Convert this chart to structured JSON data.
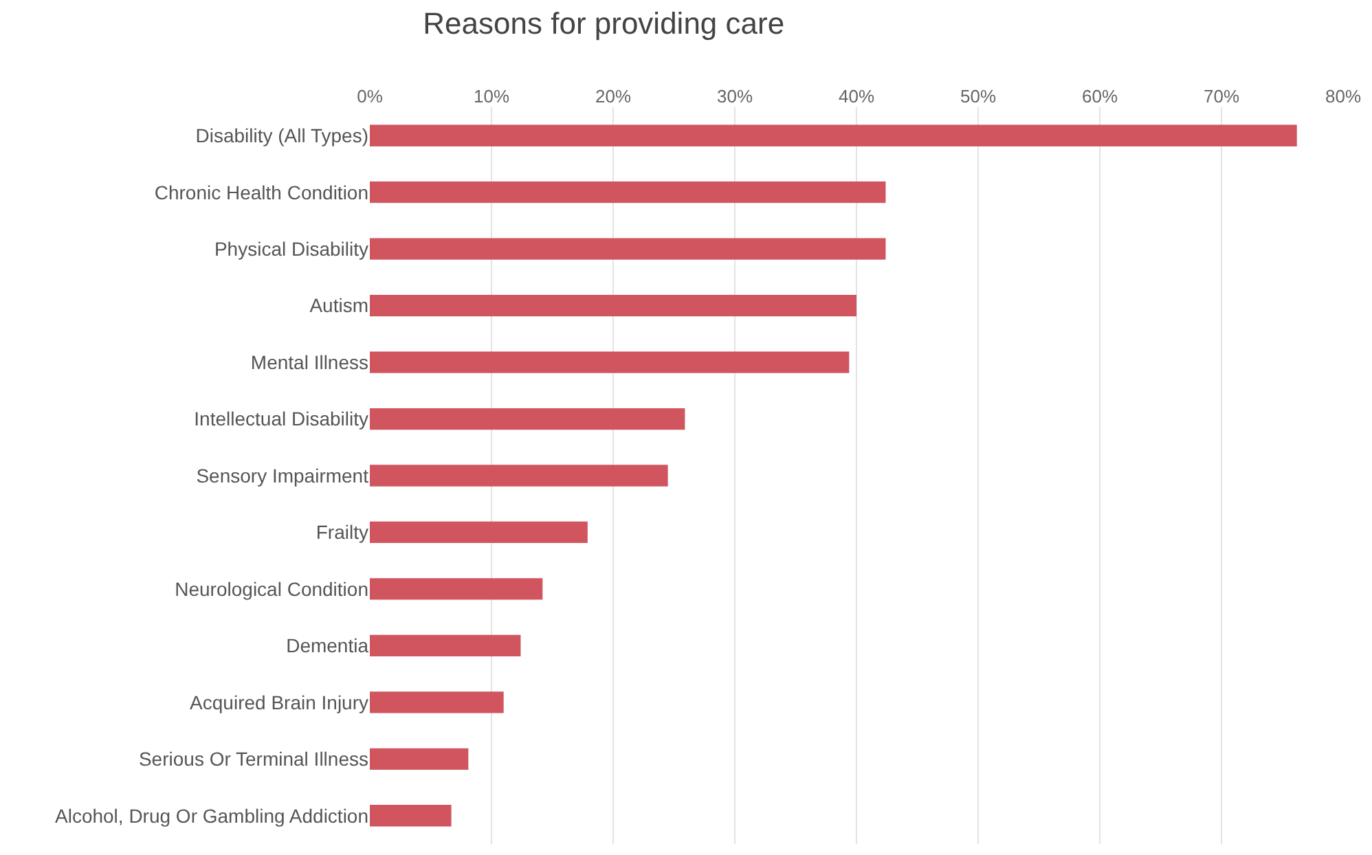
{
  "chart_data": {
    "type": "bar",
    "orientation": "horizontal",
    "title": "Reasons for providing care",
    "categories": [
      "Disability (All Types)",
      "Chronic Health Condition",
      "Physical Disability",
      "Autism",
      "Mental Illness",
      "Intellectual Disability",
      "Sensory Impairment",
      "Frailty",
      "Neurological Condition",
      "Dementia",
      "Acquired Brain Injury",
      "Serious Or Terminal Illness",
      "Alcohol, Drug Or Gambling Addiction"
    ],
    "values": [
      76.2,
      42.4,
      42.4,
      40.0,
      39.4,
      25.9,
      24.5,
      17.9,
      14.2,
      12.4,
      11.0,
      8.1,
      6.7
    ],
    "color": "#d0555f",
    "xlim": [
      0,
      80
    ],
    "xticks": [
      {
        "value": 0,
        "label": "0%"
      },
      {
        "value": 10,
        "label": "10%"
      },
      {
        "value": 20,
        "label": "20%"
      },
      {
        "value": 30,
        "label": "30%"
      },
      {
        "value": 40,
        "label": "40%"
      },
      {
        "value": 50,
        "label": "50%"
      },
      {
        "value": 60,
        "label": "60%"
      },
      {
        "value": 70,
        "label": "70%"
      },
      {
        "value": 80,
        "label": "80%"
      }
    ],
    "grid": "x"
  }
}
